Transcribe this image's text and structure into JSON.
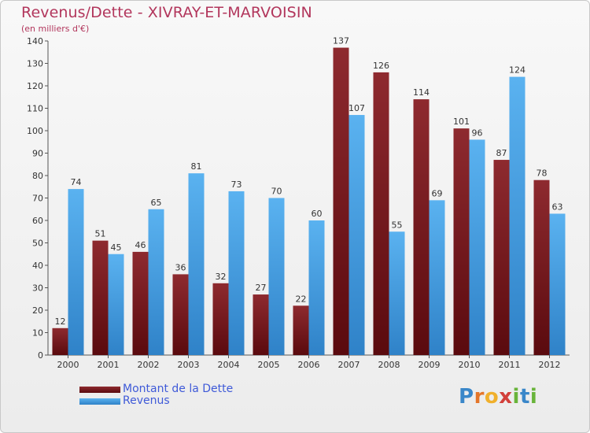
{
  "chart_data": {
    "type": "bar",
    "title": "Revenus/Dette - XIVRAY-ET-MARVOISIN",
    "subtitle": "(en milliers d'€)",
    "categories": [
      "2000",
      "2001",
      "2002",
      "2003",
      "2004",
      "2005",
      "2006",
      "2007",
      "2008",
      "2009",
      "2010",
      "2011",
      "2012"
    ],
    "series": [
      {
        "name": "Montant de la Dette",
        "values": [
          12,
          51,
          46,
          36,
          32,
          27,
          22,
          137,
          126,
          114,
          101,
          87,
          78
        ],
        "color": "#7b1a1e"
      },
      {
        "name": "Revenus",
        "values": [
          74,
          45,
          65,
          81,
          73,
          70,
          60,
          107,
          55,
          69,
          96,
          124,
          63
        ],
        "color": "#4aa3e6"
      }
    ],
    "ylim": [
      0,
      140
    ],
    "yticks": [
      0,
      10,
      20,
      30,
      40,
      50,
      60,
      70,
      80,
      90,
      100,
      110,
      120,
      130,
      140
    ],
    "grid": false,
    "legend_position": "bottom-left"
  },
  "logo": {
    "letters": [
      {
        "char": "P",
        "color": "#3a87c9"
      },
      {
        "char": "r",
        "color": "#e4762a"
      },
      {
        "char": "o",
        "color": "#f0b02c"
      },
      {
        "char": "x",
        "color": "#d2403a"
      },
      {
        "char": "i",
        "color": "#69b43a"
      },
      {
        "char": "t",
        "color": "#3a87c9"
      },
      {
        "char": "i",
        "color": "#69b43a"
      }
    ]
  }
}
